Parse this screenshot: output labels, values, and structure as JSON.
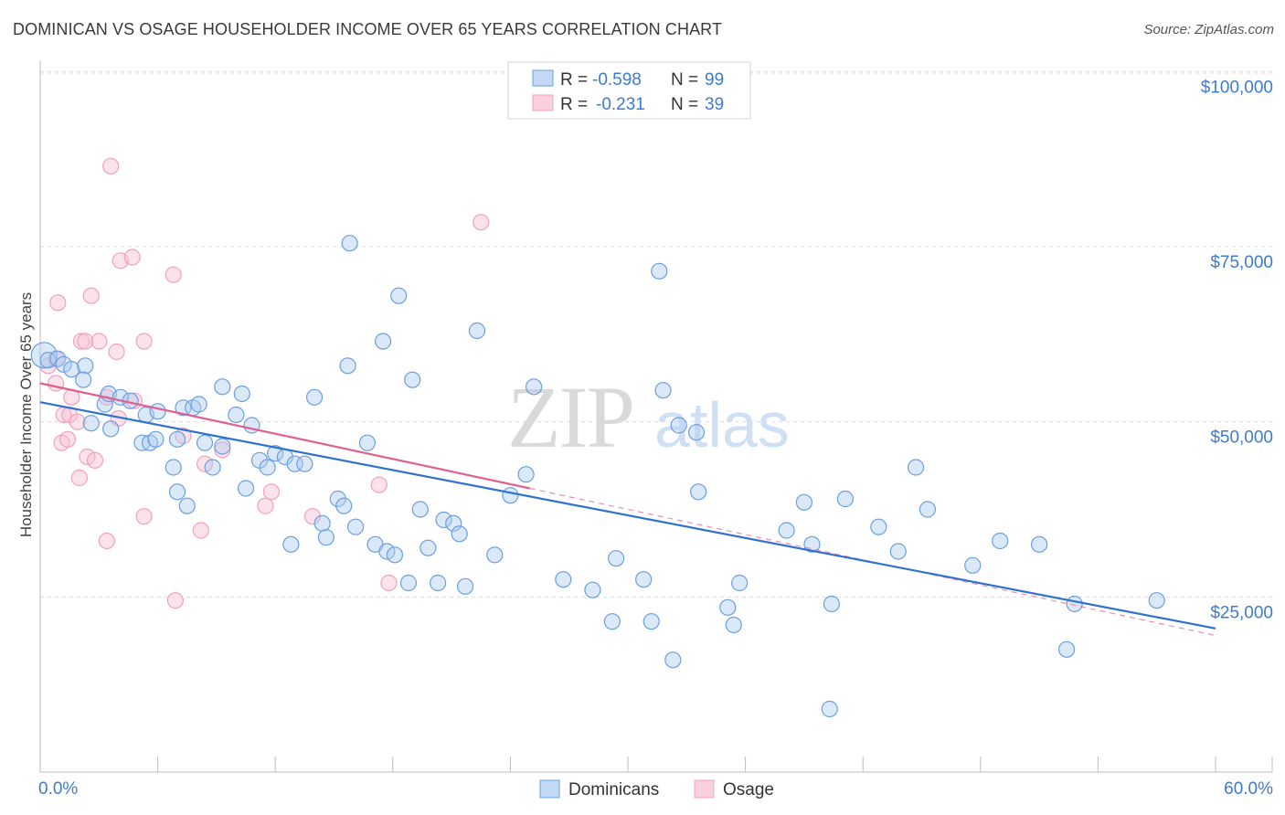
{
  "chart_data": {
    "type": "scatter",
    "title": "DOMINICAN VS OSAGE HOUSEHOLDER INCOME OVER 65 YEARS CORRELATION CHART",
    "source": "Source: ZipAtlas.com",
    "xlabel": "",
    "ylabel": "Householder Income Over 65 years",
    "xlim": [
      0,
      60
    ],
    "ylim": [
      0,
      105000
    ],
    "x_tick_labels": [
      "0.0%",
      "60.0%"
    ],
    "y_ticks": [
      25000,
      50000,
      75000,
      100000
    ],
    "y_tick_labels": [
      "$25,000",
      "$50,000",
      "$75,000",
      "$100,000"
    ],
    "watermark": "ZIPatlas",
    "colors": {
      "dominicans": "#6a9fe0",
      "osage": "#f0a0bc",
      "dominicans_line": "#2f72d0",
      "osage_line": "#e0608e",
      "tick_text": "#3d7bd1"
    },
    "legend": {
      "entries": [
        {
          "label": "Dominicans",
          "r_label": "R =",
          "r_value": "-0.598",
          "n_label": "N =",
          "n_value": "99"
        },
        {
          "label": "Osage",
          "r_label": "R =",
          "r_value": "-0.231",
          "n_label": "N =",
          "n_value": "39"
        }
      ]
    },
    "series": [
      {
        "name": "Dominicans",
        "trend": {
          "x": [
            0,
            60
          ],
          "y": [
            52800,
            20500
          ]
        },
        "points": [
          [
            0.2,
            59500
          ],
          [
            0.4,
            58800
          ],
          [
            0.9,
            59000
          ],
          [
            1.2,
            58200
          ],
          [
            1.6,
            57500
          ],
          [
            2.3,
            58000
          ],
          [
            2.2,
            56000
          ],
          [
            3.3,
            52500
          ],
          [
            3.5,
            54000
          ],
          [
            2.6,
            49800
          ],
          [
            3.6,
            49000
          ],
          [
            4.1,
            53500
          ],
          [
            4.6,
            53000
          ],
          [
            5.2,
            47000
          ],
          [
            5.4,
            51000
          ],
          [
            5.6,
            47000
          ],
          [
            5.9,
            47500
          ],
          [
            6.0,
            51500
          ],
          [
            6.8,
            43500
          ],
          [
            7.0,
            47500
          ],
          [
            7.0,
            40000
          ],
          [
            7.3,
            52000
          ],
          [
            7.5,
            38000
          ],
          [
            7.8,
            52000
          ],
          [
            8.1,
            52500
          ],
          [
            8.4,
            47000
          ],
          [
            8.8,
            43500
          ],
          [
            9.3,
            46500
          ],
          [
            9.3,
            55000
          ],
          [
            10.0,
            51000
          ],
          [
            10.3,
            54000
          ],
          [
            10.5,
            40500
          ],
          [
            10.8,
            49500
          ],
          [
            11.2,
            44500
          ],
          [
            11.6,
            43500
          ],
          [
            12.0,
            45500
          ],
          [
            12.5,
            45000
          ],
          [
            12.8,
            32500
          ],
          [
            13.0,
            44000
          ],
          [
            13.5,
            44000
          ],
          [
            14.0,
            53500
          ],
          [
            14.4,
            35500
          ],
          [
            14.6,
            33500
          ],
          [
            15.2,
            39000
          ],
          [
            15.5,
            38000
          ],
          [
            15.7,
            58000
          ],
          [
            15.8,
            75500
          ],
          [
            16.1,
            35000
          ],
          [
            16.7,
            47000
          ],
          [
            17.1,
            32500
          ],
          [
            17.5,
            61500
          ],
          [
            17.7,
            31500
          ],
          [
            18.1,
            31000
          ],
          [
            18.3,
            68000
          ],
          [
            18.8,
            27000
          ],
          [
            19.0,
            56000
          ],
          [
            19.4,
            37500
          ],
          [
            19.8,
            32000
          ],
          [
            20.3,
            27000
          ],
          [
            20.6,
            36000
          ],
          [
            21.1,
            35500
          ],
          [
            21.4,
            34000
          ],
          [
            21.7,
            26500
          ],
          [
            22.3,
            63000
          ],
          [
            23.2,
            31000
          ],
          [
            24.0,
            39500
          ],
          [
            24.8,
            42500
          ],
          [
            25.2,
            55000
          ],
          [
            26.7,
            27500
          ],
          [
            28.2,
            26000
          ],
          [
            29.2,
            21500
          ],
          [
            29.4,
            30500
          ],
          [
            30.8,
            27500
          ],
          [
            31.2,
            21500
          ],
          [
            31.6,
            71500
          ],
          [
            31.8,
            54500
          ],
          [
            32.3,
            16000
          ],
          [
            32.6,
            49500
          ],
          [
            33.5,
            48500
          ],
          [
            33.6,
            40000
          ],
          [
            35.1,
            23500
          ],
          [
            35.4,
            21000
          ],
          [
            35.7,
            27000
          ],
          [
            38.1,
            34500
          ],
          [
            39.0,
            38500
          ],
          [
            39.4,
            32500
          ],
          [
            40.3,
            9000
          ],
          [
            40.4,
            24000
          ],
          [
            41.1,
            39000
          ],
          [
            42.8,
            35000
          ],
          [
            43.8,
            31500
          ],
          [
            44.7,
            43500
          ],
          [
            45.3,
            37500
          ],
          [
            47.6,
            29500
          ],
          [
            49.0,
            33000
          ],
          [
            51.0,
            32500
          ],
          [
            52.4,
            17500
          ],
          [
            52.8,
            24000
          ],
          [
            57.0,
            24500
          ]
        ]
      },
      {
        "name": "Osage",
        "trend": {
          "x": [
            0,
            25
          ],
          "y": [
            55500,
            40500
          ]
        },
        "trend_ext": {
          "x": [
            25,
            60
          ],
          "y": [
            40500,
            19500
          ]
        },
        "points": [
          [
            0.4,
            58000
          ],
          [
            0.8,
            55500
          ],
          [
            0.8,
            59000
          ],
          [
            0.9,
            67000
          ],
          [
            1.1,
            47000
          ],
          [
            1.2,
            51000
          ],
          [
            1.4,
            47500
          ],
          [
            1.5,
            51000
          ],
          [
            1.6,
            53500
          ],
          [
            1.9,
            50000
          ],
          [
            2.0,
            42000
          ],
          [
            2.1,
            61500
          ],
          [
            2.3,
            61500
          ],
          [
            2.4,
            45000
          ],
          [
            2.6,
            68000
          ],
          [
            2.8,
            44500
          ],
          [
            3.0,
            61500
          ],
          [
            3.4,
            33000
          ],
          [
            3.4,
            53500
          ],
          [
            3.6,
            86500
          ],
          [
            3.9,
            60000
          ],
          [
            4.0,
            50500
          ],
          [
            4.1,
            73000
          ],
          [
            4.7,
            73500
          ],
          [
            4.8,
            53000
          ],
          [
            5.3,
            36500
          ],
          [
            5.3,
            61500
          ],
          [
            6.8,
            71000
          ],
          [
            6.9,
            24500
          ],
          [
            7.3,
            48000
          ],
          [
            8.2,
            34500
          ],
          [
            8.4,
            44000
          ],
          [
            9.3,
            46000
          ],
          [
            11.5,
            38000
          ],
          [
            11.8,
            40000
          ],
          [
            13.9,
            36500
          ],
          [
            17.3,
            41000
          ],
          [
            17.8,
            27000
          ],
          [
            22.5,
            78500
          ]
        ]
      }
    ]
  }
}
